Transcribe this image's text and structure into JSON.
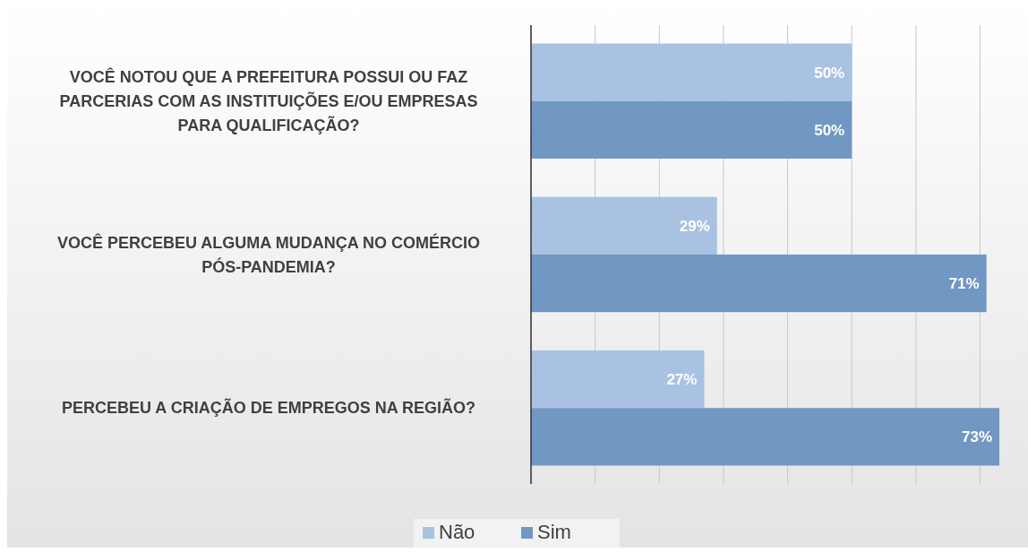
{
  "chart_data": {
    "type": "bar",
    "orientation": "horizontal",
    "categories": [
      "VOCÊ NOTOU QUE A PREFEITURA POSSUI OU FAZ PARCERIAS COM AS INSTITUIÇÕES E/OU EMPRESAS PARA QUALIFICAÇÃO?",
      "VOCÊ PERCEBEU ALGUMA MUDANÇA NO COMÉRCIO PÓS-PANDEMIA?",
      "PERCEBEU A CRIAÇÃO DE EMPREGOS NA REGIÃO?"
    ],
    "series": [
      {
        "name": "Não",
        "color": "#a9c2e2",
        "values": [
          50,
          29,
          27
        ],
        "value_labels": [
          "50%",
          "29%",
          "27%"
        ]
      },
      {
        "name": "Sim",
        "color": "#7098c2",
        "values": [
          50,
          71,
          73
        ],
        "value_labels": [
          "50%",
          "71%",
          "73%"
        ]
      }
    ],
    "xticks": [
      {
        "value": 0,
        "label": null
      },
      {
        "value": 10,
        "label": null
      },
      {
        "value": 20,
        "label": null
      },
      {
        "value": 30,
        "label": null
      },
      {
        "value": 40,
        "label": null
      },
      {
        "value": 50,
        "label": null
      },
      {
        "value": 60,
        "label": null
      },
      {
        "value": 70,
        "label": null
      }
    ],
    "grid": "x",
    "legend": "bottom"
  }
}
